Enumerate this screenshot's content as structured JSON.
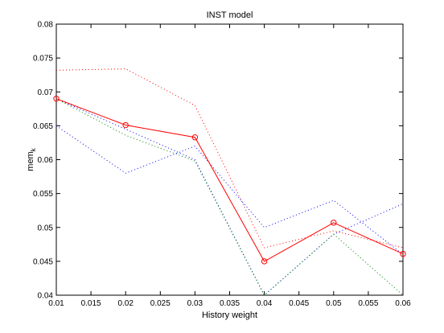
{
  "chart_data": {
    "type": "line",
    "title": "INST model",
    "xlabel": "History weight",
    "ylabel_main": "mem",
    "ylabel_sub": "k",
    "xlim": [
      0.01,
      0.06
    ],
    "ylim": [
      0.04,
      0.08
    ],
    "xticks": [
      "0.01",
      "0.015",
      "0.02",
      "0.025",
      "0.03",
      "0.035",
      "0.04",
      "0.045",
      "0.05",
      "0.055",
      "0.06"
    ],
    "yticks": [
      "0.04",
      "0.045",
      "0.05",
      "0.055",
      "0.06",
      "0.065",
      "0.07",
      "0.075",
      "0.08"
    ],
    "grid": false,
    "x": [
      0.01,
      0.02,
      0.03,
      0.04,
      0.05,
      0.06
    ],
    "series": [
      {
        "values": [
          0.069,
          0.0651,
          0.0633,
          0.045,
          0.0507,
          0.0461
        ],
        "color": "#ff0000",
        "style": "solid",
        "marker": "circle"
      },
      {
        "values": [
          0.0732,
          0.0734,
          0.068,
          0.047,
          0.0495,
          0.047
        ],
        "color": "#ff0000",
        "style": "dotted"
      },
      {
        "values": [
          0.065,
          0.058,
          0.062,
          0.05,
          0.054,
          0.046
        ],
        "color": "#0000ff",
        "style": "dotted"
      },
      {
        "values": [
          0.069,
          0.0645,
          0.06,
          0.04,
          0.049,
          0.0535
        ],
        "color": "#0000ff",
        "style": "dotted"
      },
      {
        "values": [
          0.069,
          0.0636,
          0.0598,
          0.04,
          0.049,
          0.04
        ],
        "color": "#008000",
        "style": "dotted"
      }
    ]
  }
}
